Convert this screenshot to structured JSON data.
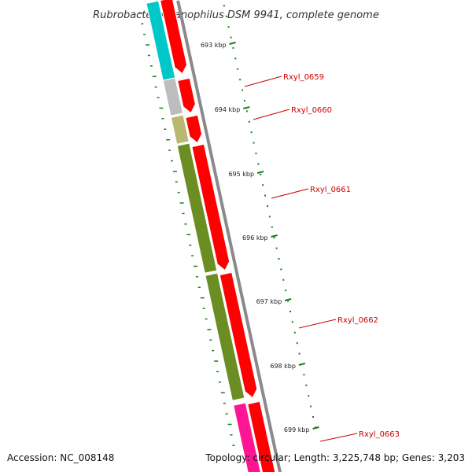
{
  "title": "Rubrobacter xylanophilus DSM 9941, complete genome",
  "footer": {
    "accession": "Accession: NC_008148",
    "summary": "Topology: circular; Length: 3,225,748 bp; Genes: 3,203"
  },
  "ruler": {
    "color": "#1a7f1a",
    "ticks": [
      "693 kbp",
      "694 kbp",
      "695 kbp",
      "696 kbp",
      "697 kbp",
      "698 kbp",
      "699 kbp"
    ]
  },
  "gene_labels": [
    {
      "name": "Rxyl_0659",
      "color": "#cc0000"
    },
    {
      "name": "Rxyl_0660",
      "color": "#cc0000"
    },
    {
      "name": "Rxyl_0661",
      "color": "#cc0000"
    },
    {
      "name": "Rxyl_0662",
      "color": "#cc0000"
    },
    {
      "name": "Rxyl_0663",
      "color": "#cc0000"
    }
  ],
  "colors": {
    "backbone": "#8a8a8a",
    "strand_forward": "#ff0000",
    "cyan_gene": "#00c8c8",
    "grey_gene": "#bdbdbd",
    "khaki_gene": "#b8b870",
    "olive_gene": "#6b8e23",
    "magenta_gene": "#ff1493"
  }
}
